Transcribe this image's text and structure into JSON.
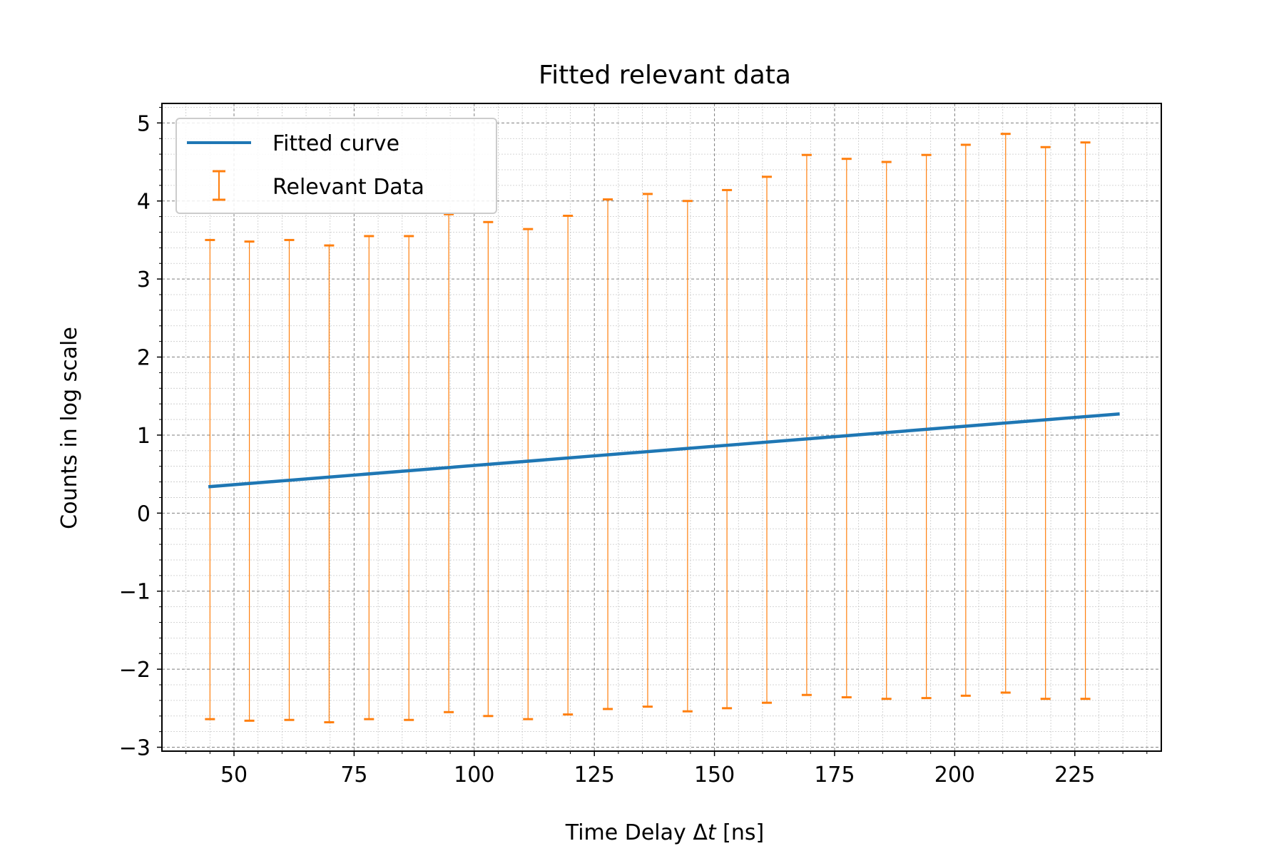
{
  "chart_data": {
    "type": "scatter",
    "title": "Fitted relevant data",
    "xlabel_prefix": "Time Delay Δ",
    "xlabel_var": "t",
    "xlabel_suffix": " [ns]",
    "ylabel": "Counts in log scale",
    "xlim": [
      35,
      243
    ],
    "ylim": [
      -3.05,
      5.25
    ],
    "xticks": [
      50,
      75,
      100,
      125,
      150,
      175,
      200,
      225
    ],
    "yticks": [
      -3,
      -2,
      -1,
      0,
      1,
      2,
      3,
      4,
      5
    ],
    "ytick_labels": [
      "−3",
      "−2",
      "−1",
      "0",
      "1",
      "2",
      "3",
      "4",
      "5"
    ],
    "grid": true,
    "legend_position": "top-left",
    "fit": {
      "name": "Fitted curve",
      "color": "#1f77b4",
      "x": [
        45,
        234
      ],
      "y": [
        0.34,
        1.27
      ]
    },
    "errorbars": {
      "name": "Relevant Data",
      "color": "#ff7f0e",
      "points": [
        {
          "x": 45.0,
          "low": -2.64,
          "high": 3.5
        },
        {
          "x": 53.2,
          "low": -2.66,
          "high": 3.48
        },
        {
          "x": 61.5,
          "low": -2.65,
          "high": 3.5
        },
        {
          "x": 69.8,
          "low": -2.68,
          "high": 3.43
        },
        {
          "x": 78.1,
          "low": -2.64,
          "high": 3.55
        },
        {
          "x": 86.4,
          "low": -2.65,
          "high": 3.55
        },
        {
          "x": 94.7,
          "low": -2.55,
          "high": 3.83
        },
        {
          "x": 102.9,
          "low": -2.6,
          "high": 3.73
        },
        {
          "x": 111.2,
          "low": -2.64,
          "high": 3.64
        },
        {
          "x": 119.5,
          "low": -2.58,
          "high": 3.81
        },
        {
          "x": 127.8,
          "low": -2.51,
          "high": 4.02
        },
        {
          "x": 136.1,
          "low": -2.48,
          "high": 4.09
        },
        {
          "x": 144.4,
          "low": -2.54,
          "high": 4.0
        },
        {
          "x": 152.6,
          "low": -2.5,
          "high": 4.14
        },
        {
          "x": 160.9,
          "low": -2.43,
          "high": 4.31
        },
        {
          "x": 169.2,
          "low": -2.33,
          "high": 4.59
        },
        {
          "x": 177.5,
          "low": -2.36,
          "high": 4.54
        },
        {
          "x": 185.8,
          "low": -2.38,
          "high": 4.5
        },
        {
          "x": 194.1,
          "low": -2.37,
          "high": 4.59
        },
        {
          "x": 202.3,
          "low": -2.34,
          "high": 4.72
        },
        {
          "x": 210.6,
          "low": -2.3,
          "high": 4.86
        },
        {
          "x": 218.9,
          "low": -2.38,
          "high": 4.69
        },
        {
          "x": 227.2,
          "low": -2.38,
          "high": 4.75
        }
      ]
    }
  }
}
